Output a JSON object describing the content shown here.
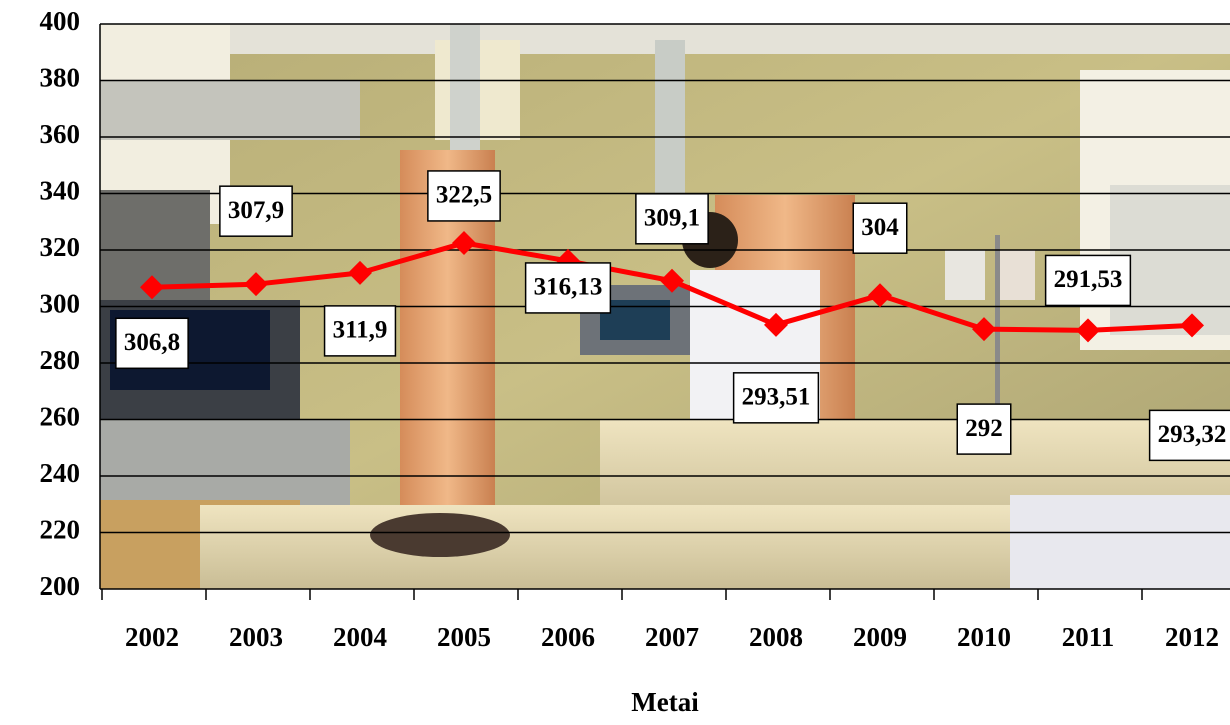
{
  "chart_data": {
    "type": "line",
    "x_label": "Metai",
    "categories": [
      "2002",
      "2003",
      "2004",
      "2005",
      "2006",
      "2007",
      "2008",
      "2009",
      "2010",
      "2011",
      "2012"
    ],
    "values": [
      306.8,
      307.9,
      311.9,
      322.5,
      316.13,
      309.1,
      293.51,
      304,
      292,
      291.53,
      293.32
    ],
    "value_labels": [
      "306,8",
      "307,9",
      "311,9",
      "322,5",
      "316,13",
      "309,1",
      "293,51",
      "304",
      "292",
      "291,53",
      "293,32"
    ],
    "color": "#ff0000",
    "ylim": [
      200,
      400
    ],
    "yticks": [
      200,
      220,
      240,
      260,
      280,
      300,
      320,
      340,
      360,
      380,
      400
    ],
    "grid": true
  }
}
